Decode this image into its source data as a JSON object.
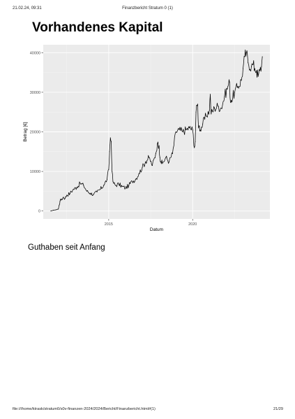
{
  "browser_header": {
    "datetime": "21.02.24, 09:31",
    "doc_title": "Finanzbericht Stratum 0 (1)"
  },
  "page": {
    "title": "Vorhandenes Kapital",
    "section_text": "Guthaben seit Anfang"
  },
  "browser_footer": {
    "url": "file:///home/ktrask/stratum0/s0v-finanzen-2024/2024/Bericht/Finanzbericht.html#(1)",
    "page_number": "21/29"
  },
  "chart_data": {
    "type": "line",
    "title": "",
    "xlabel": "Datum",
    "ylabel": "Betrag [€]",
    "xlim": [
      2011.1,
      2024.6
    ],
    "ylim": [
      -2000,
      42000
    ],
    "x_ticks": [
      2015,
      2020
    ],
    "x_tick_labels": [
      "2015",
      "2020"
    ],
    "y_ticks": [
      0,
      10000,
      20000,
      30000,
      40000
    ],
    "y_tick_labels": [
      "0",
      "10000",
      "20000",
      "30000",
      "40000"
    ],
    "grid": true,
    "legend": "none",
    "colors": {
      "panel": "#ebebeb",
      "grid_major": "#ffffff",
      "line": "#000000"
    },
    "series": [
      {
        "x": [
          2011.55,
          2011.7,
          2011.85,
          2012.0,
          2012.05,
          2012.1,
          2012.2,
          2012.3,
          2012.4,
          2012.5,
          2012.7,
          2012.9,
          2013.1,
          2013.3,
          2013.5,
          2013.7,
          2013.9,
          2014.1,
          2014.3,
          2014.5,
          2014.7,
          2014.9,
          2015.0,
          2015.05,
          2015.1,
          2015.15,
          2015.2,
          2015.25,
          2015.3,
          2015.4,
          2015.6,
          2015.8,
          2016.0,
          2016.2,
          2016.4,
          2016.6,
          2016.8,
          2017.0,
          2017.2,
          2017.4,
          2017.6,
          2017.8,
          2017.9,
          2018.0,
          2018.05,
          2018.1,
          2018.2,
          2018.4,
          2018.6,
          2018.8,
          2019.0,
          2019.2,
          2019.4,
          2019.6,
          2019.8,
          2020.0,
          2020.1,
          2020.15,
          2020.2,
          2020.3,
          2020.35,
          2020.4,
          2020.45,
          2020.6,
          2020.8,
          2021.0,
          2021.05,
          2021.1,
          2021.3,
          2021.5,
          2021.7,
          2021.9,
          2022.1,
          2022.2,
          2022.25,
          2022.3,
          2022.5,
          2022.7,
          2022.9,
          2023.0,
          2023.1,
          2023.2,
          2023.3,
          2023.5,
          2023.6,
          2023.7,
          2023.8,
          2023.9,
          2024.0,
          2024.1,
          2024.15
        ],
        "y": [
          0,
          200,
          300,
          500,
          1500,
          2500,
          3000,
          3500,
          3200,
          4000,
          4500,
          5500,
          6000,
          7000,
          6500,
          5000,
          4500,
          4200,
          4800,
          5500,
          6500,
          8000,
          10500,
          15000,
          18500,
          17500,
          10000,
          7500,
          7000,
          6500,
          6800,
          6200,
          5800,
          6500,
          7500,
          8000,
          9500,
          11000,
          12500,
          13500,
          11500,
          14500,
          17000,
          16500,
          13500,
          12500,
          12000,
          13500,
          12500,
          14500,
          20000,
          20500,
          20000,
          20500,
          21000,
          20500,
          16000,
          17500,
          25000,
          27000,
          21000,
          21500,
          20500,
          22000,
          24000,
          25500,
          29500,
          24500,
          26000,
          26500,
          26000,
          29000,
          31500,
          32500,
          27500,
          28000,
          30000,
          31500,
          33000,
          36000,
          39000,
          40000,
          37500,
          36500,
          37000,
          36000,
          35500,
          34000,
          35500,
          36500,
          39000
        ]
      }
    ]
  }
}
